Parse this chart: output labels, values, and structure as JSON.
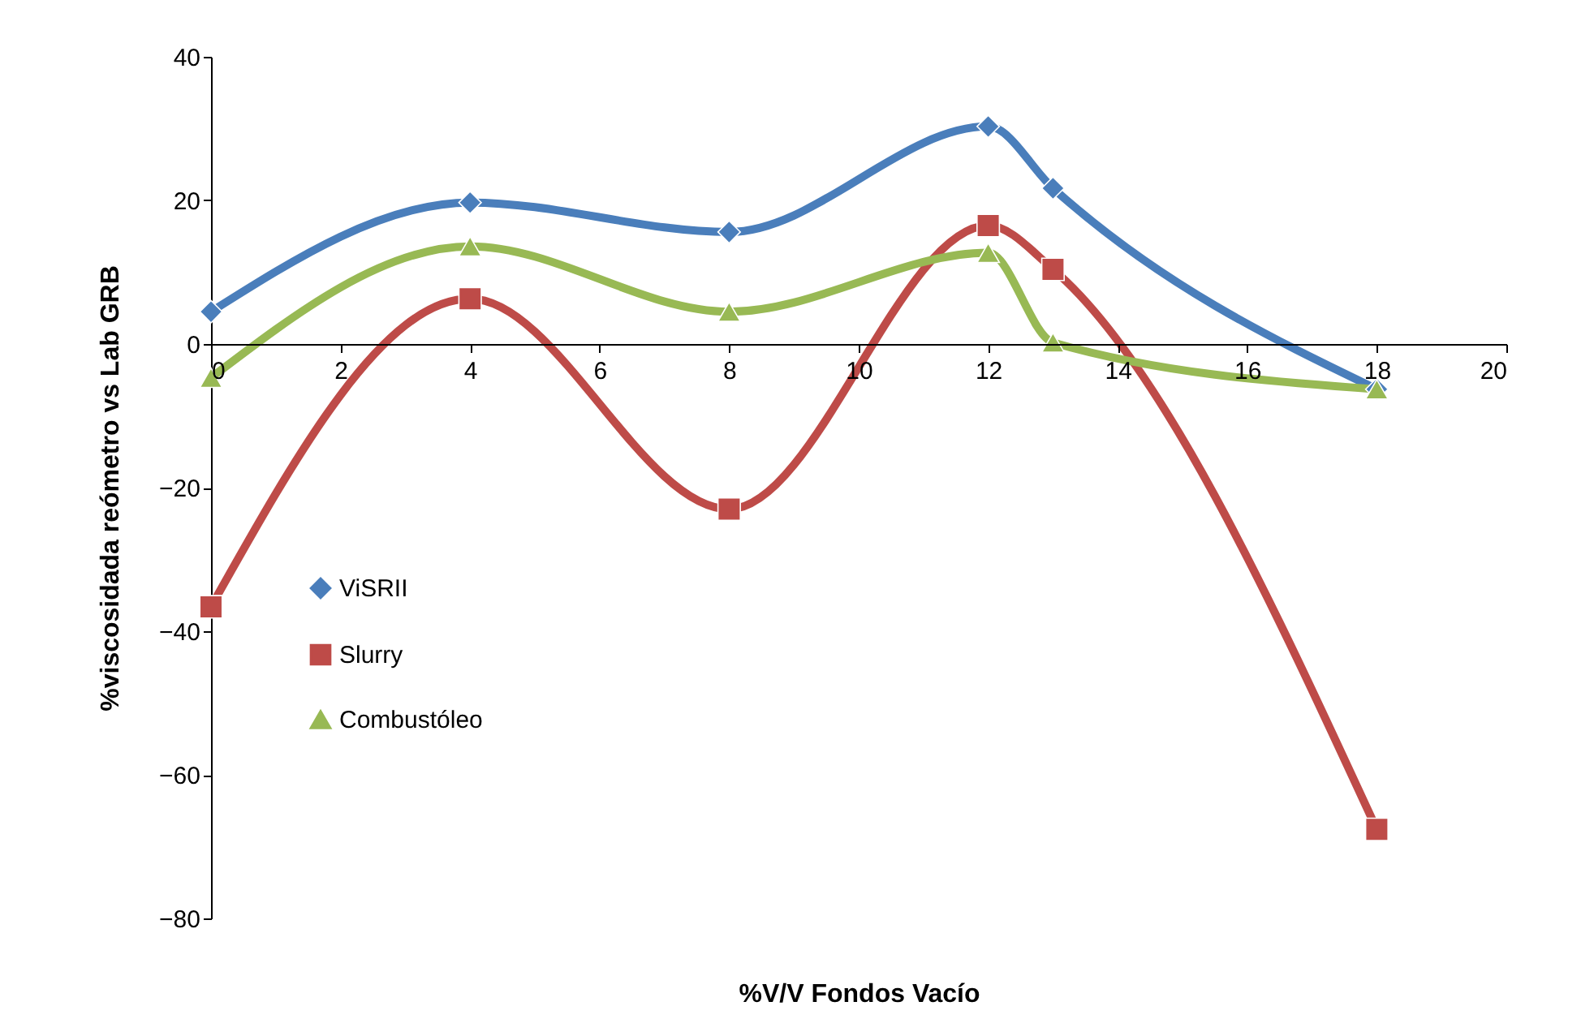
{
  "chart_data": {
    "type": "line",
    "xlabel": "%V/V Fondos Vacío",
    "ylabel": "%viscosidada reómetro vs Lab  GRB",
    "x": [
      0,
      4,
      8,
      12,
      13,
      18
    ],
    "series": [
      {
        "name": "ViSRII",
        "color": "#4a7ebb",
        "marker": "diamond",
        "values": [
          4.5,
          19.7,
          15.6,
          30.3,
          21.7,
          -6.3
        ]
      },
      {
        "name": "Slurry",
        "color": "#be4b48",
        "marker": "square",
        "values": [
          -36.6,
          6.3,
          -23,
          16.5,
          10.4,
          -67.6
        ]
      },
      {
        "name": "Combustóleo",
        "color": "#98b954",
        "marker": "triangle",
        "values": [
          -4.7,
          13.6,
          4.5,
          12.7,
          0.2,
          -6.3
        ]
      }
    ],
    "xlim": [
      0,
      20
    ],
    "xticks": [
      0,
      2,
      4,
      6,
      8,
      10,
      12,
      14,
      16,
      18,
      20
    ],
    "ylim": [
      -80,
      40
    ],
    "yticks": [
      -80,
      -60,
      -40,
      -20,
      0,
      20,
      40
    ],
    "grid": false,
    "legend": "left",
    "line_style": "solid"
  }
}
